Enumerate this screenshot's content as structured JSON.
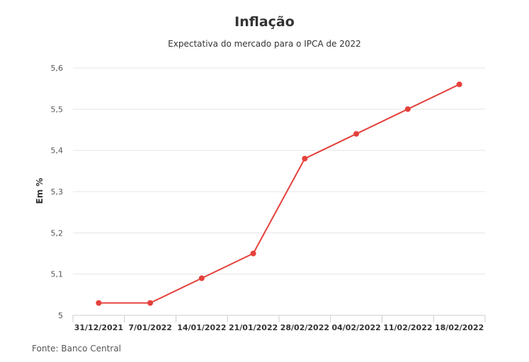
{
  "chart_data": {
    "type": "line",
    "title": "Inflação",
    "subtitle": "Expectativa do mercado para o IPCA de 2022",
    "ylabel": "Em %",
    "xlabel": "",
    "source": "Fonte: Banco Central",
    "categories": [
      "31/12/2021",
      "7/01/2022",
      "14/01/2022",
      "21/01/2022",
      "28/02/2022",
      "04/02/2022",
      "11/02/2022",
      "18/02/2022"
    ],
    "values": [
      5.03,
      5.03,
      5.09,
      5.15,
      5.38,
      5.44,
      5.5,
      5.56
    ],
    "yticks": [
      "5",
      "5,1",
      "5,2",
      "5,3",
      "5,4",
      "5,5",
      "5,6"
    ],
    "ylim": [
      5,
      5.6
    ],
    "grid": true,
    "legend": "none",
    "color": "#e5413b"
  }
}
